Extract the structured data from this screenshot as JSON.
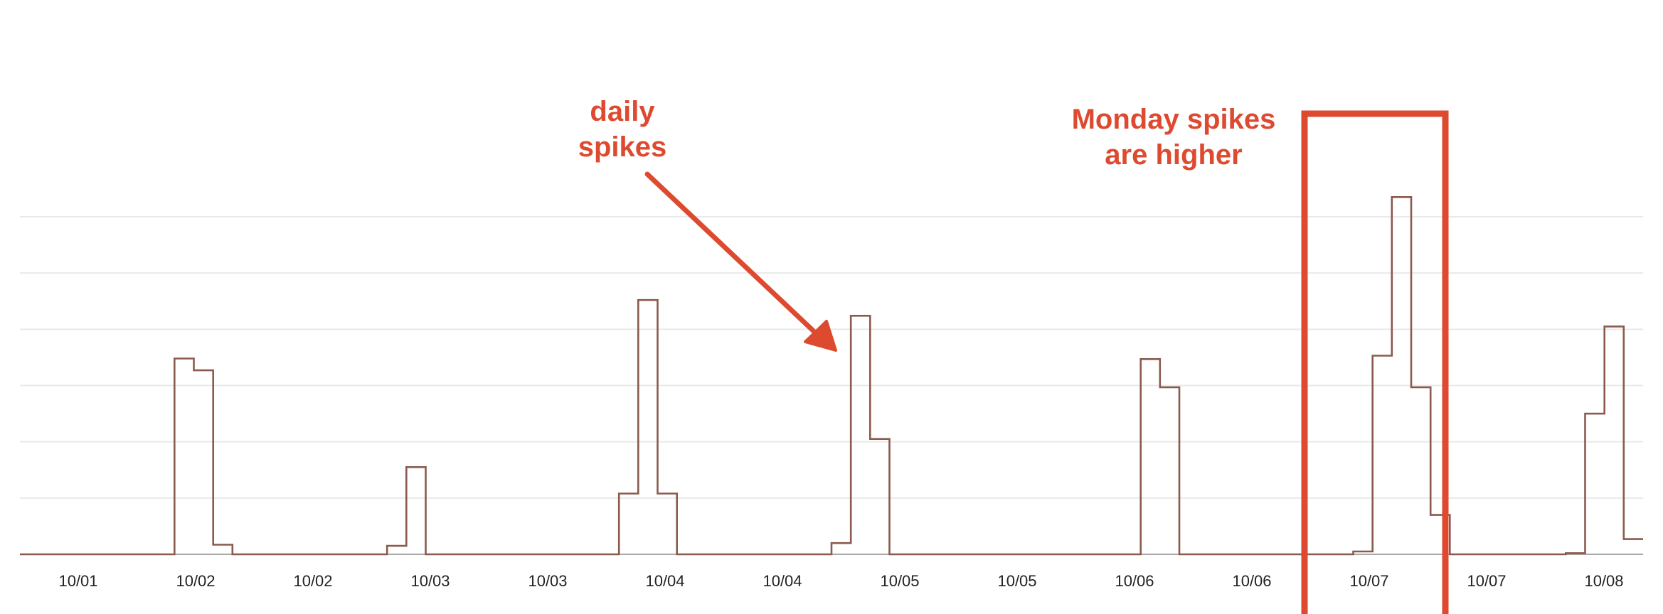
{
  "chart_data": {
    "type": "line",
    "title": "",
    "xlabel": "",
    "ylabel": "",
    "grid": true,
    "legend": "none",
    "line_color": "#8b5a4e",
    "annotation_color": "#dd4a30",
    "xlim": [
      0,
      168
    ],
    "ylim": [
      0,
      6
    ],
    "x_tick_labels": [
      "10/01",
      "10/02",
      "10/02",
      "10/03",
      "10/03",
      "10/04",
      "10/04",
      "10/05",
      "10/05",
      "10/06",
      "10/06",
      "10/07",
      "10/07",
      "10/08"
    ],
    "series": [
      {
        "x": [
          0,
          14,
          16,
          18,
          20,
          22,
          24,
          26,
          28,
          30,
          32,
          34,
          36,
          38,
          40,
          42,
          44,
          46,
          48,
          50,
          52,
          54,
          56,
          58,
          60,
          62,
          64,
          66,
          68,
          70,
          72,
          74,
          76,
          78,
          80,
          82,
          84,
          86,
          88,
          90,
          92,
          94,
          96,
          98,
          100,
          102,
          104,
          106,
          108,
          110,
          112,
          114,
          116,
          118,
          120,
          122,
          124,
          126,
          128,
          130,
          132,
          134,
          136,
          138,
          140,
          142,
          144,
          146,
          148,
          150,
          152,
          154,
          156,
          158,
          160,
          162,
          164,
          166,
          168
        ],
        "y": [
          0,
          0,
          3.48,
          3.27,
          0.17,
          0,
          0,
          0,
          0,
          0,
          0,
          0,
          0,
          0.15,
          1.55,
          0,
          0,
          0,
          0,
          0,
          0,
          0,
          0,
          0,
          0,
          1.08,
          4.52,
          1.08,
          0,
          0,
          0,
          0,
          0,
          0,
          0,
          0,
          0.2,
          4.24,
          2.05,
          0,
          0,
          0,
          0,
          0,
          0,
          0,
          0,
          0,
          0,
          0,
          0,
          0,
          3.47,
          2.97,
          0,
          0,
          0,
          0,
          0,
          0,
          0,
          0,
          0,
          0.05,
          3.53,
          6.35,
          2.97,
          0.7,
          0,
          0,
          0,
          0,
          0,
          0,
          0.02,
          2.5,
          4.05,
          0.27,
          0.27
        ]
      }
    ],
    "annotations": [
      {
        "lines": [
          "daily",
          "spikes"
        ]
      },
      {
        "lines": [
          "Monday spikes",
          "are higher"
        ]
      }
    ]
  }
}
